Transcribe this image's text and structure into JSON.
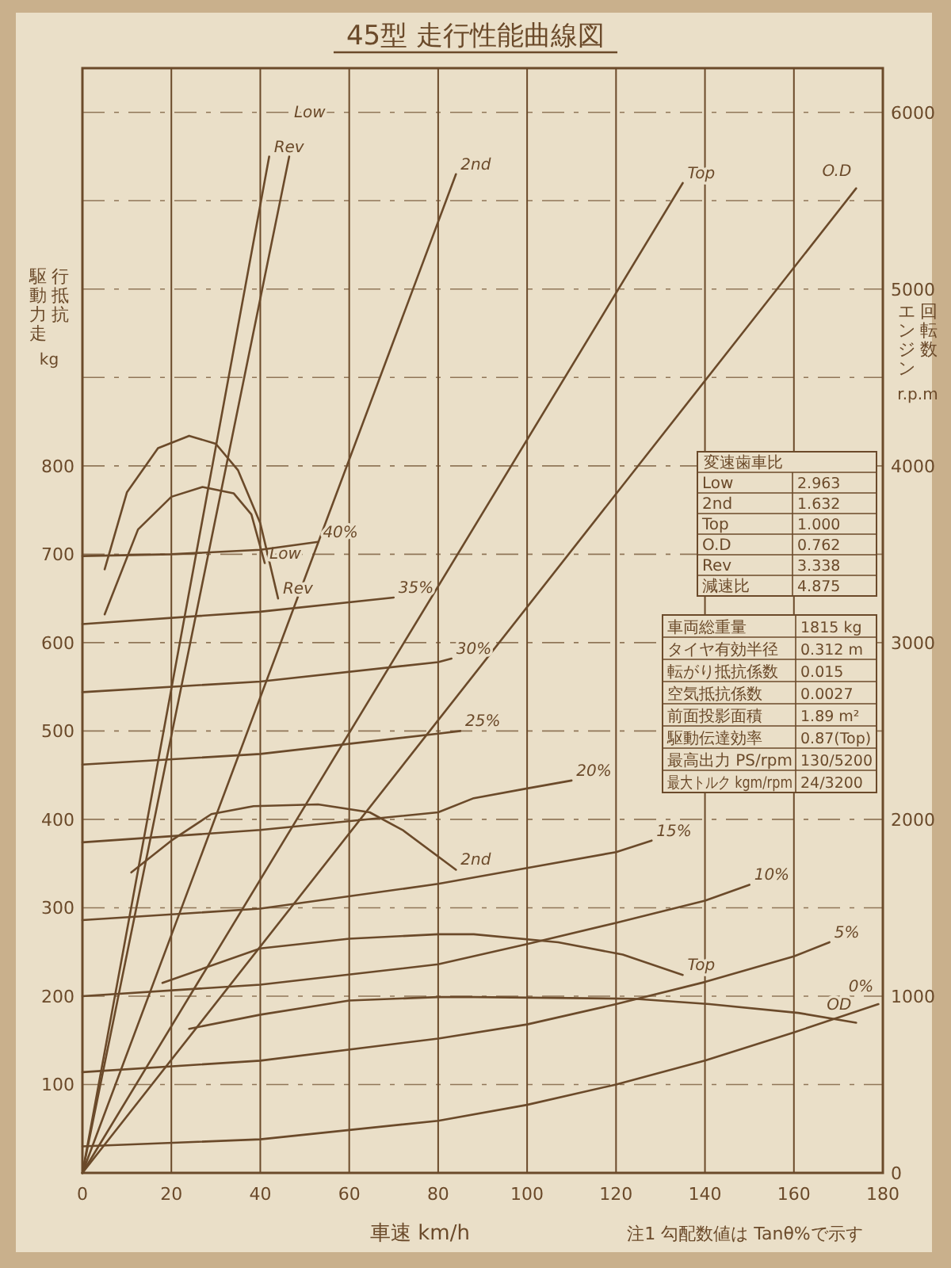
{
  "chart_data": {
    "type": "line",
    "title": "45型 走行性能曲線図",
    "xlabel": "車速 km/h",
    "ylabel": "駆動力走行抵抗 kg",
    "y2label": "エンジン回転数 r.p.m",
    "xlim": [
      0,
      180
    ],
    "xticks": [
      0,
      20,
      40,
      60,
      80,
      100,
      120,
      140,
      160,
      180
    ],
    "ylim": [
      0,
      1250
    ],
    "yticks": [
      {
        "value": 0,
        "label": null
      },
      100,
      200,
      300,
      400,
      500,
      600,
      700,
      800,
      {
        "value": 900,
        "label": null
      },
      {
        "value": 1000,
        "label": null
      },
      {
        "value": 1100,
        "label": null
      },
      {
        "value": 1200,
        "label": null
      }
    ],
    "y2lim": [
      0,
      6250
    ],
    "y2ticks": [
      0,
      1000,
      2000,
      3000,
      4000,
      5000,
      6000
    ],
    "grid": true,
    "marker": "none",
    "line_style": "solid",
    "series": [
      {
        "name": "Rev",
        "color": "#6b4a2a",
        "axis": "y2",
        "x": [
          0,
          42
        ],
        "values": [
          0,
          5750
        ]
      },
      {
        "name": "Low",
        "color": "#6b4a2a",
        "axis": "y2",
        "x": [
          0,
          46.5
        ],
        "values": [
          0,
          5750
        ]
      },
      {
        "name": "2nd",
        "color": "#6b4a2a",
        "axis": "y2",
        "x": [
          0,
          84
        ],
        "values": [
          0,
          5650
        ]
      },
      {
        "name": "Top",
        "color": "#6b4a2a",
        "axis": "y2",
        "x": [
          0,
          135
        ],
        "values": [
          0,
          5600
        ]
      },
      {
        "name": "O.D",
        "color": "#6b4a2a",
        "axis": "y2",
        "x": [
          0,
          174
        ],
        "values": [
          0,
          5570
        ]
      },
      {
        "name": "Rev",
        "color": "#6b4a2a",
        "x": [
          5,
          10,
          17,
          24,
          30,
          35,
          40,
          44
        ],
        "values": [
          683,
          770,
          820,
          834,
          825,
          795,
          735,
          650
        ]
      },
      {
        "name": "Low",
        "color": "#6b4a2a",
        "x": [
          5,
          12.5,
          20,
          27,
          34,
          38,
          41
        ],
        "values": [
          632,
          728,
          765,
          776,
          769,
          745,
          690
        ]
      },
      {
        "name": "2nd",
        "color": "#6b4a2a",
        "x": [
          11,
          20,
          29,
          38.5,
          53,
          64.6,
          72,
          84
        ],
        "values": [
          340,
          376,
          406,
          415,
          417,
          408,
          388,
          343
        ]
      },
      {
        "name": "Top",
        "color": "#6b4a2a",
        "x": [
          18,
          40,
          60,
          80,
          88,
          107,
          121.5,
          135
        ],
        "values": [
          215,
          254,
          265,
          270,
          270,
          261,
          247,
          224
        ]
      },
      {
        "name": "OD",
        "color": "#6b4a2a",
        "x": [
          24,
          40,
          60,
          80,
          88,
          124,
          141,
          161,
          174
        ],
        "values": [
          163,
          179,
          195,
          199,
          199,
          197,
          191,
          181,
          170
        ]
      },
      {
        "name": "40%",
        "color": "#6b4a2a",
        "x": [
          0,
          20,
          40,
          53
        ],
        "values": [
          698,
          700,
          705,
          714
        ]
      },
      {
        "name": "35%",
        "color": "#6b4a2a",
        "x": [
          0,
          40,
          70
        ],
        "values": [
          621,
          635,
          651
        ]
      },
      {
        "name": "30%",
        "color": "#6b4a2a",
        "x": [
          0,
          40,
          80,
          83
        ],
        "values": [
          544,
          556,
          578,
          582
        ]
      },
      {
        "name": "25%",
        "color": "#6b4a2a",
        "x": [
          0,
          40,
          80,
          85
        ],
        "values": [
          462,
          474,
          497,
          500
        ]
      },
      {
        "name": "20%",
        "color": "#6b4a2a",
        "x": [
          0,
          40,
          80,
          88,
          100,
          110
        ],
        "values": [
          374,
          388,
          408,
          424,
          435,
          444
        ]
      },
      {
        "name": "15%",
        "color": "#6b4a2a",
        "x": [
          0,
          40,
          80,
          100,
          120,
          128
        ],
        "values": [
          286,
          299,
          327,
          345,
          363,
          376
        ]
      },
      {
        "name": "10%",
        "color": "#6b4a2a",
        "x": [
          0,
          40,
          80,
          100,
          120,
          140,
          150
        ],
        "values": [
          200,
          213,
          236,
          259,
          283,
          308,
          326
        ]
      },
      {
        "name": "5%",
        "color": "#6b4a2a",
        "x": [
          0,
          40,
          80,
          100,
          120,
          140,
          160,
          168
        ],
        "values": [
          114,
          127,
          152,
          168,
          191,
          216,
          245,
          261
        ]
      },
      {
        "name": "0%",
        "color": "#6b4a2a",
        "x": [
          0,
          40,
          80,
          100,
          120,
          140,
          160,
          179
        ],
        "values": [
          30,
          38,
          59,
          77,
          100,
          127,
          159,
          191
        ]
      }
    ],
    "annotations": [
      "注1 勾配数値は Tanθ%で示す",
      "変速歯車比",
      "Low\t2.963",
      "2nd\t1.632",
      "Top\t1.000",
      "O.D\t0.762",
      "Rev\t3.338",
      "減速比\t4.875",
      "車両総重量\t1815 kg",
      "タイヤ有効半径\t0.312 m",
      "転がり抵抗係数\t0.015",
      "空気抵抗係数\t0.0027",
      "前面投影面積\t1.89 m²",
      "駆動伝達効率\t0.87(Top)",
      "最高出力 PS/rpm\t130/5200",
      "最大トルク kgm/rpm\t24/3200"
    ]
  }
}
